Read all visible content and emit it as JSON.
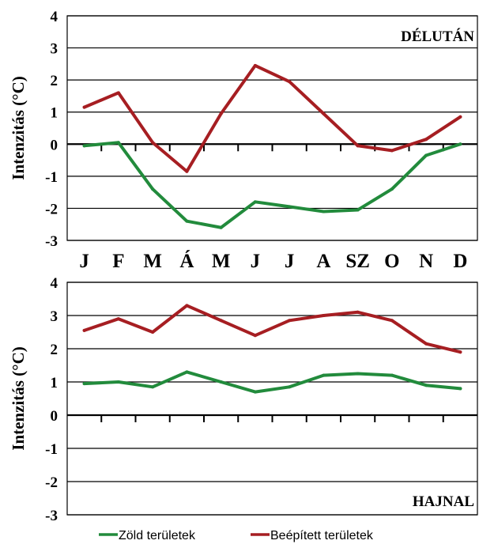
{
  "chart_data": [
    {
      "type": "line",
      "title": "DÉLUTÁN",
      "ylabel": "Intenzitás (°C)",
      "categories": [
        "J",
        "F",
        "M",
        "Á",
        "M",
        "J",
        "J",
        "A",
        "SZ",
        "O",
        "N",
        "D"
      ],
      "ylim": [
        -3,
        4
      ],
      "yticks": [
        "4",
        "3",
        "2",
        "1",
        "0",
        "-1",
        "-2",
        "-3"
      ],
      "grid": true,
      "series": [
        {
          "name": "Zöld területek",
          "color": "#228B3C",
          "values": [
            -0.05,
            0.05,
            -1.4,
            -2.4,
            -2.6,
            -1.8,
            -1.95,
            -2.1,
            -2.05,
            -1.4,
            -0.35,
            0.0
          ]
        },
        {
          "name": "Beépített területek",
          "color": "#A61E22",
          "values": [
            1.15,
            1.6,
            0.05,
            -0.85,
            0.95,
            2.45,
            1.95,
            0.95,
            -0.05,
            -0.2,
            0.15,
            0.85
          ]
        }
      ]
    },
    {
      "type": "line",
      "title": "HAJNAL",
      "ylabel": "Intenzitás (°C)",
      "categories": [
        "J",
        "F",
        "M",
        "Á",
        "M",
        "J",
        "J",
        "A",
        "SZ",
        "O",
        "N",
        "D"
      ],
      "ylim": [
        -3,
        4
      ],
      "yticks": [
        "4",
        "3",
        "2",
        "1",
        "0",
        "-1",
        "-2",
        "-3"
      ],
      "grid": true,
      "series": [
        {
          "name": "Zöld területek",
          "color": "#228B3C",
          "values": [
            0.95,
            1.0,
            0.85,
            1.3,
            1.0,
            0.7,
            0.85,
            1.2,
            1.25,
            1.2,
            0.9,
            0.8
          ]
        },
        {
          "name": "Beépített területek",
          "color": "#A61E22",
          "values": [
            2.55,
            2.9,
            2.5,
            3.3,
            2.85,
            2.4,
            2.85,
            3.0,
            3.1,
            2.85,
            2.15,
            1.9
          ]
        }
      ]
    }
  ],
  "month_labels": [
    "J",
    "F",
    "M",
    "Á",
    "M",
    "J",
    "J",
    "A",
    "SZ",
    "O",
    "N",
    "D"
  ],
  "legend": [
    {
      "label": "Zöld területek",
      "color": "#228B3C"
    },
    {
      "label": "Beépített területek",
      "color": "#A61E22"
    }
  ]
}
